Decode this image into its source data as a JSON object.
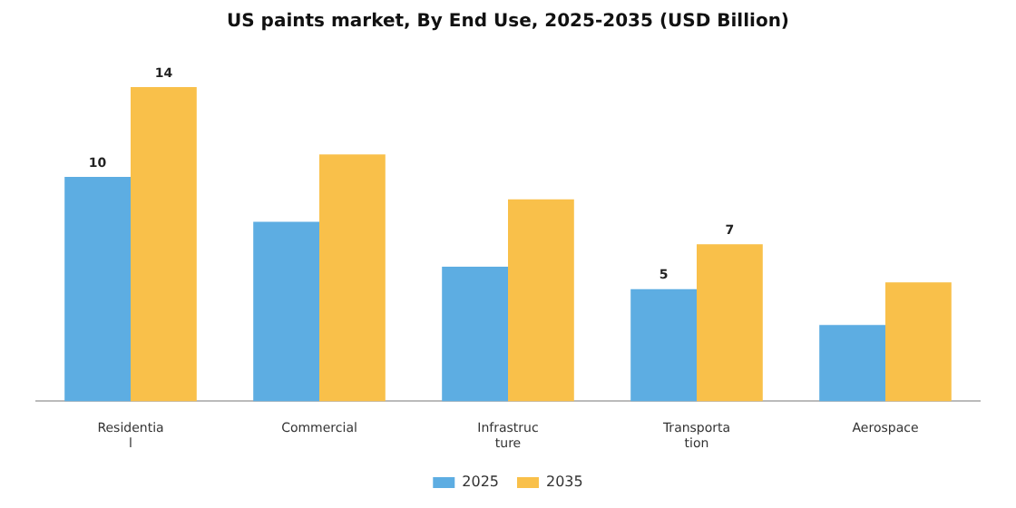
{
  "chart_data": {
    "type": "bar",
    "title": "US paints market, By End Use, 2025-2035 (USD Billion)",
    "categories": [
      "Residential",
      "Commercial",
      "Infrastructure",
      "Transportation",
      "Aerospace"
    ],
    "tick_labels": "x",
    "ylim": [
      0,
      14
    ],
    "data_labels": true,
    "legend": "bottom",
    "grid": false,
    "series": [
      {
        "name": "2025",
        "color": "#5dade2",
        "values": [
          10,
          8,
          6,
          5,
          3.4
        ],
        "value_labels": [
          "10",
          null,
          null,
          "5",
          null
        ]
      },
      {
        "name": "2035",
        "color": "#f9c04a",
        "values": [
          14,
          11,
          9,
          7,
          5.3
        ],
        "value_labels": [
          "14",
          null,
          null,
          "7",
          null
        ]
      }
    ]
  }
}
